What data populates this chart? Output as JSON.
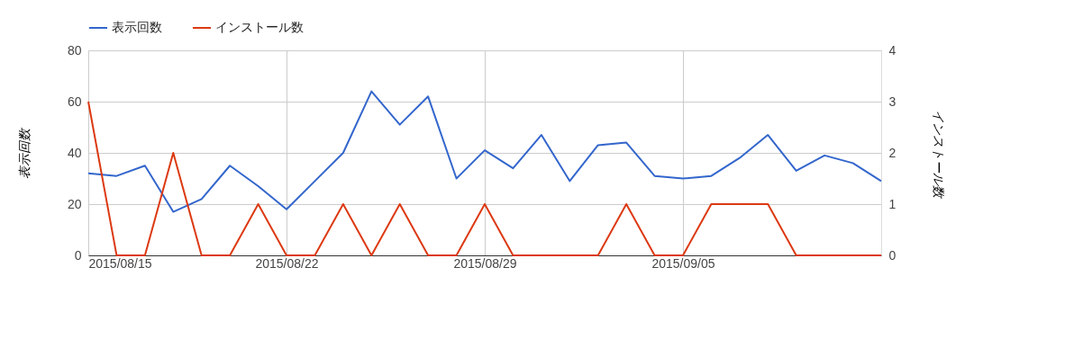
{
  "chart_data": {
    "type": "line",
    "ylabel": "表示回数",
    "y2label": "インストール数",
    "x": [
      "2015-08-15",
      "2015-08-16",
      "2015-08-17",
      "2015-08-18",
      "2015-08-19",
      "2015-08-20",
      "2015-08-21",
      "2015-08-22",
      "2015-08-23",
      "2015-08-24",
      "2015-08-25",
      "2015-08-26",
      "2015-08-27",
      "2015-08-28",
      "2015-08-29",
      "2015-08-30",
      "2015-08-31",
      "2015-09-01",
      "2015-09-02",
      "2015-09-03",
      "2015-09-04",
      "2015-09-05",
      "2015-09-06",
      "2015-09-07",
      "2015-09-08",
      "2015-09-09",
      "2015-09-10",
      "2015-09-11",
      "2015-09-12"
    ],
    "series": [
      {
        "name": "表示回数",
        "color": "#3366cc",
        "values": [
          32,
          31,
          35,
          17,
          22,
          35,
          27,
          18,
          29,
          40,
          64,
          51,
          62,
          30,
          41,
          34,
          47,
          29,
          43,
          44,
          31,
          30,
          31,
          38,
          47,
          33,
          39,
          36,
          29
        ]
      },
      {
        "name": "インストール数",
        "color": "#dc3912",
        "axis": "y2",
        "values": [
          3,
          0,
          0,
          2,
          0,
          0,
          1,
          0,
          0,
          1,
          0,
          1,
          0,
          0,
          1,
          0,
          0,
          0,
          0,
          1,
          0,
          0,
          1,
          1,
          1,
          0,
          0,
          0,
          0
        ]
      }
    ],
    "xlim": [
      "2015-08-15",
      "2015-09-12"
    ],
    "xticks": [
      {
        "value": "2015-08-15",
        "label": "2015/08/15"
      },
      {
        "value": "2015-08-22",
        "label": "2015/08/22"
      },
      {
        "value": "2015-08-29",
        "label": "2015/08/29"
      },
      {
        "value": "2015-09-05",
        "label": "2015/09/05"
      }
    ],
    "ylim": [
      0,
      80
    ],
    "yticks": [
      0,
      20,
      40,
      60,
      80
    ],
    "y2lim": [
      0,
      4
    ],
    "y2ticks": [
      0,
      1,
      2,
      3,
      4
    ],
    "grid": true,
    "legend": "top left",
    "marker": "none",
    "line_style": "solid"
  }
}
